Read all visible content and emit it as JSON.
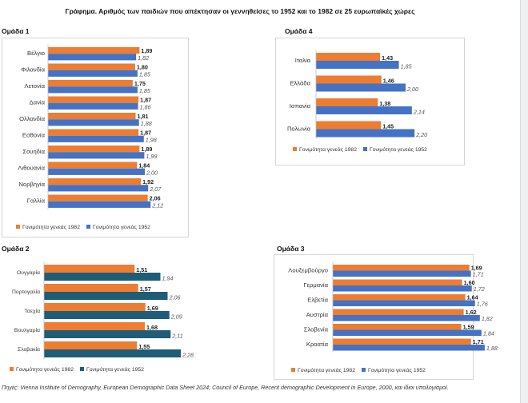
{
  "title": "Γράφημα. Αριθμός των παιδιών που απέκτησαν  οι γεννηθείσες το 1952 και το 1982 σε 25 ευρωπαϊκές χώρες",
  "source": "Πηγές: Vienna Institute of Demography, European Demographic Data Sheet 2024;  Council of Europe, Recent demographic Development in Europe, 2000, και ίδιοι υπολογισμοί.",
  "colors": {
    "orange": "#ED7D31",
    "blue": "#4472C4",
    "teal": "#1F5C78"
  },
  "chart_data": [
    {
      "id": "g1",
      "group": "Ομάδα 1",
      "type": "bar",
      "orientation": "horizontal",
      "categories": [
        "Βέλγιο",
        "Φιλανδία",
        "Λετονία",
        "Δανία",
        "Ολλανδία",
        "Εσθονία",
        "Σουηδία",
        "Λιθουανία",
        "Νορβηγία",
        "Γαλλία"
      ],
      "series": [
        {
          "name": "Γονιμότητα γενεάς  1982",
          "values": [
            "1,89",
            "1,80",
            "1,75",
            "1,87",
            "1,81",
            "1,87",
            "1,89",
            "1,84",
            "1,92",
            "2,06"
          ]
        },
        {
          "name": "Γονιμότητα γενεάς  1952",
          "values": [
            "1,82",
            "1,85",
            "1,85",
            "1,86",
            "1,88",
            "1,98",
            "1,99",
            "2,00",
            "2,07",
            "2,12"
          ]
        }
      ],
      "xlim": [
        0,
        2.6
      ]
    },
    {
      "id": "g4",
      "group": "Ομάδα 4",
      "type": "bar",
      "orientation": "horizontal",
      "categories": [
        "Ιταλία",
        "Ελλάδα",
        "Ισπανία",
        "Πολωνία"
      ],
      "series": [
        {
          "name": "Γονιμότητα γενεάς  1982",
          "values": [
            "1,43",
            "1,46",
            "1,38",
            "1,45"
          ]
        },
        {
          "name": "Γονιμότητα γενεάς  1952",
          "values": [
            "1,85",
            "2,00",
            "2,14",
            "2,20"
          ]
        }
      ],
      "xlim": [
        0,
        2.6
      ]
    },
    {
      "id": "g2",
      "group": "Ομάδα 2",
      "type": "bar",
      "orientation": "horizontal",
      "categories": [
        "Ουγγαρία",
        "Πορτογαλία",
        "Τσεχία",
        "Βουλγαρία",
        "Σλοβακία"
      ],
      "series": [
        {
          "name": "Γονιμότητα γενεάς  1982",
          "values": [
            "1,51",
            "1,57",
            "1,69",
            "1,68",
            "1,55"
          ]
        },
        {
          "name": "Γονιμότητα γενεάς  1952",
          "values": [
            "1,94",
            "2,06",
            "2,09",
            "2,11",
            "2,28"
          ]
        }
      ],
      "xlim": [
        0,
        2.6
      ]
    },
    {
      "id": "g3",
      "group": "Ομάδα 3",
      "type": "bar",
      "orientation": "horizontal",
      "categories": [
        "Λουξεμβούργο",
        "Γερμανία",
        "Ελβετία",
        "Αυστρία",
        "Σλοβενία",
        "Κροατία"
      ],
      "series": [
        {
          "name": "Γονιμότητα γενεάς  1982",
          "values": [
            "1,69",
            "1,60",
            "1,64",
            "1,62",
            "1,59",
            "1,71"
          ]
        },
        {
          "name": "Γονιμότητα γενεάς  1952",
          "values": [
            "1,71",
            "1,72",
            "1,76",
            "1,82",
            "1,84",
            "1,88"
          ]
        }
      ],
      "xlim": [
        0,
        2.6
      ]
    }
  ]
}
